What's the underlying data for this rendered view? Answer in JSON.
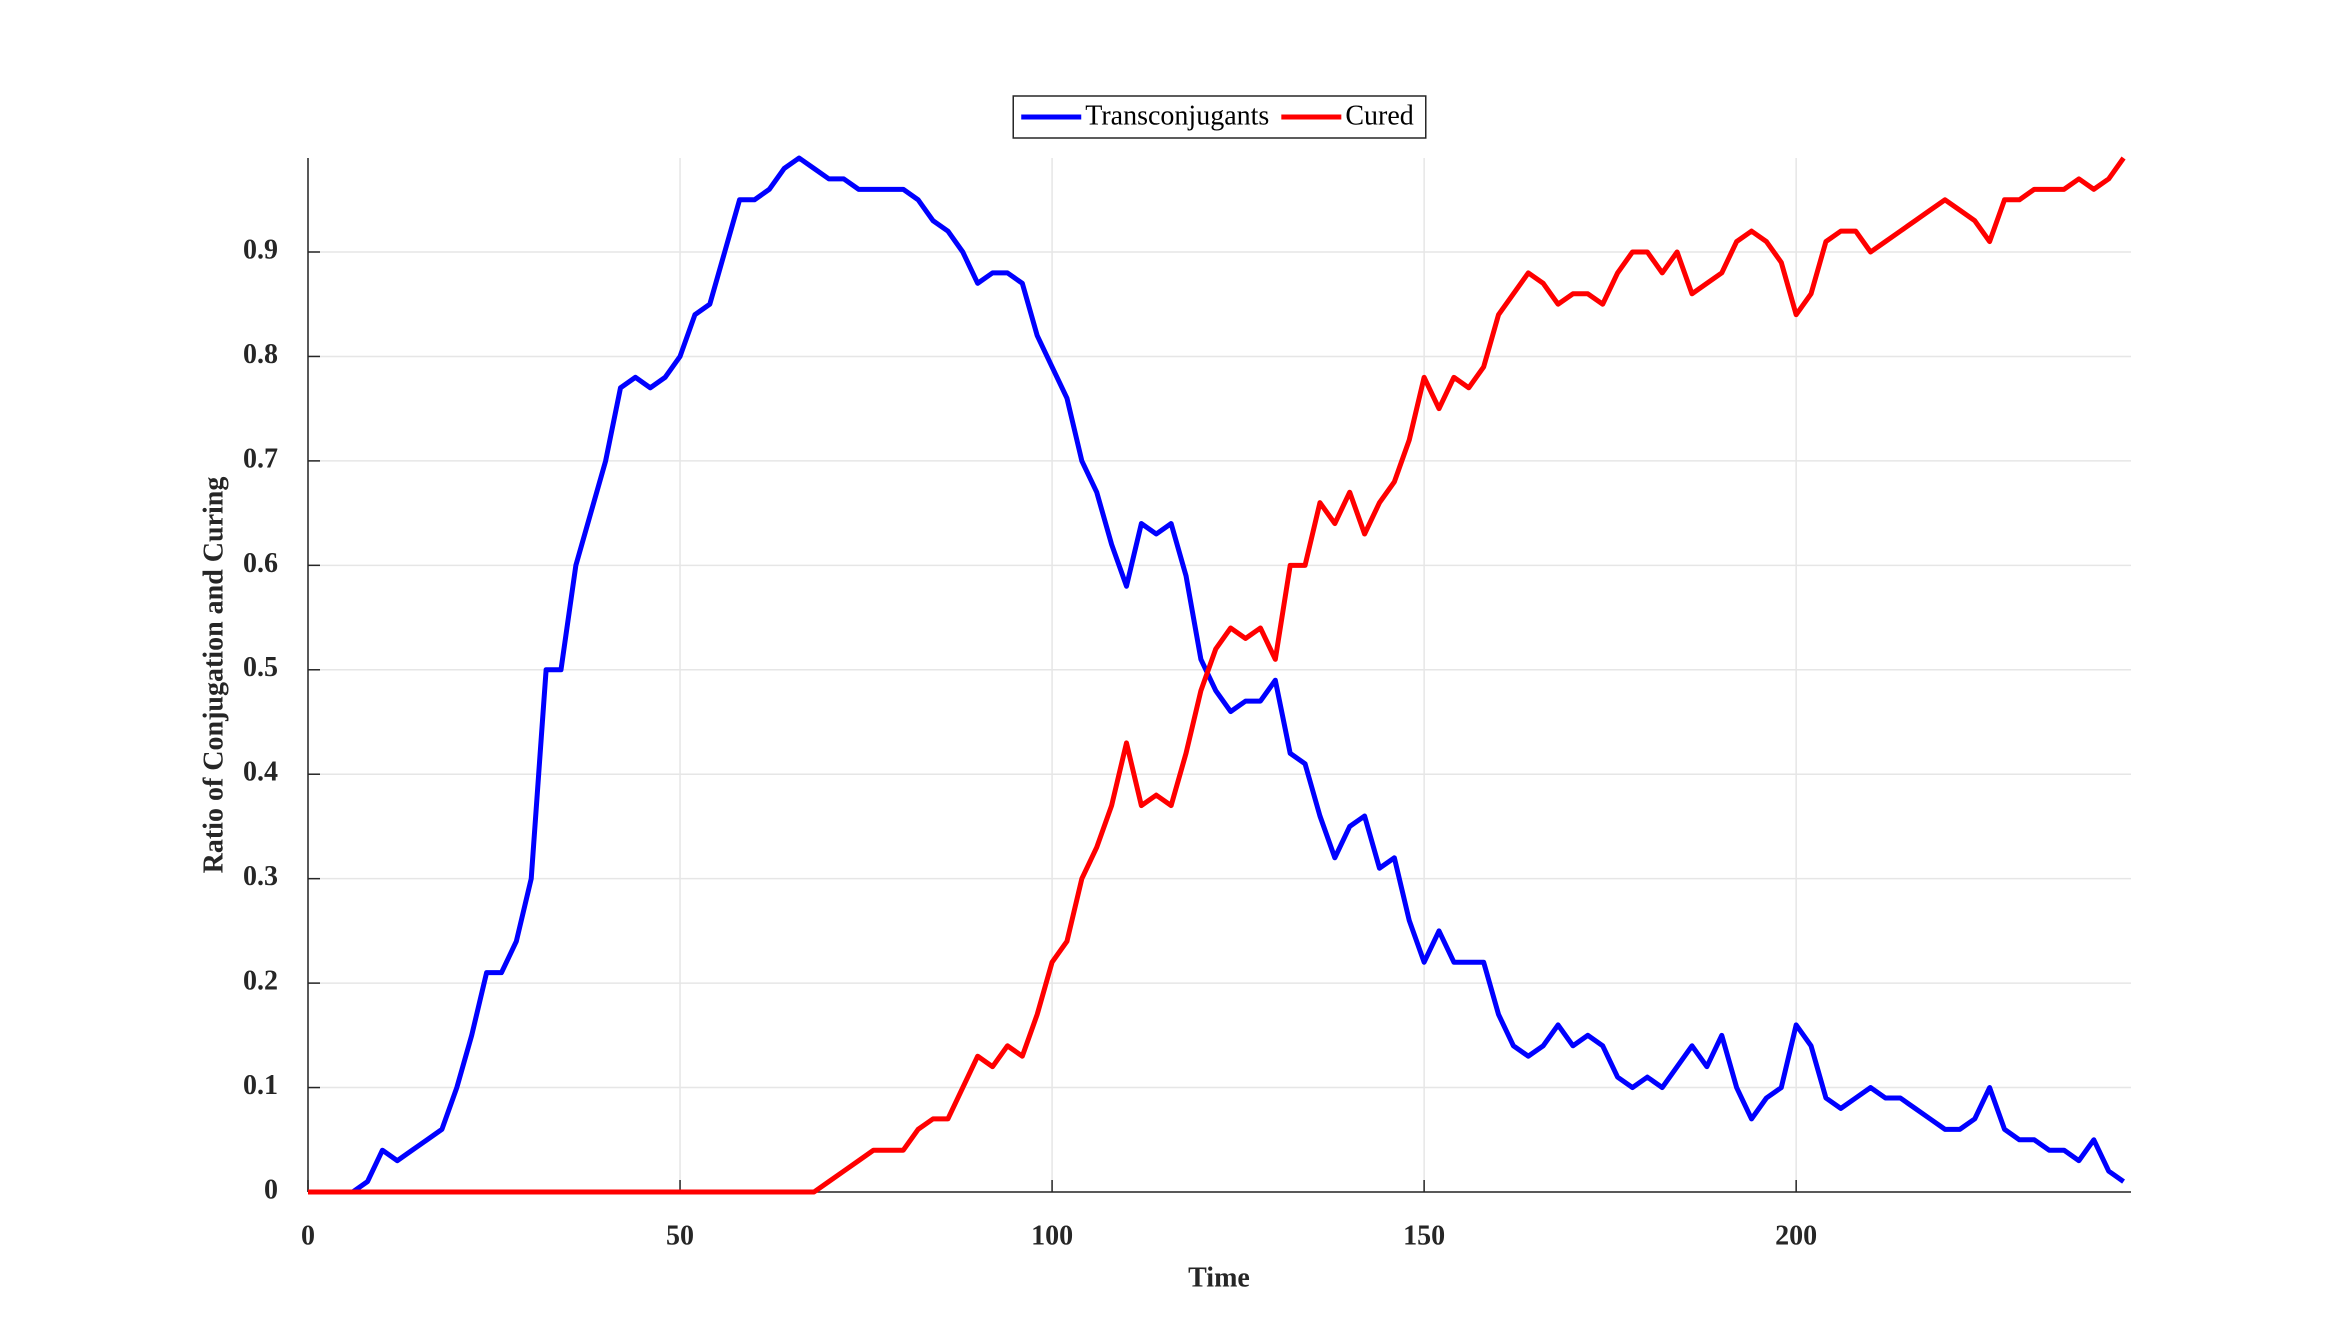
{
  "chart_data": {
    "type": "line",
    "xlabel": "Time",
    "ylabel": "Ratio of Conjugation and Curing",
    "xlim": [
      0,
      245
    ],
    "ylim": [
      0,
      0.99
    ],
    "xticks": [
      0,
      50,
      100,
      150,
      200
    ],
    "yticks": [
      0,
      0.1,
      0.2,
      0.3,
      0.4,
      0.5,
      0.6,
      0.7,
      0.8,
      0.9
    ],
    "grid": true,
    "legend": "top",
    "x": [
      0,
      2,
      4,
      6,
      8,
      10,
      12,
      14,
      16,
      18,
      20,
      22,
      24,
      26,
      28,
      30,
      32,
      34,
      36,
      38,
      40,
      42,
      44,
      46,
      48,
      50,
      52,
      54,
      56,
      58,
      60,
      62,
      64,
      66,
      68,
      70,
      72,
      74,
      76,
      78,
      80,
      82,
      84,
      86,
      88,
      90,
      92,
      94,
      96,
      98,
      100,
      102,
      104,
      106,
      108,
      110,
      112,
      114,
      116,
      118,
      120,
      122,
      124,
      126,
      128,
      130,
      132,
      134,
      136,
      138,
      140,
      142,
      144,
      146,
      148,
      150,
      152,
      154,
      156,
      158,
      160,
      162,
      164,
      166,
      168,
      170,
      172,
      174,
      176,
      178,
      180,
      182,
      184,
      186,
      188,
      190,
      192,
      194,
      196,
      198,
      200,
      202,
      204,
      206,
      208,
      210,
      212,
      214,
      216,
      218,
      220,
      222,
      224,
      226,
      228,
      230,
      232,
      234,
      236,
      238,
      240,
      242,
      244
    ],
    "series": [
      {
        "name": "Transconjugants",
        "color": "#0000ff",
        "values": [
          null,
          null,
          null,
          0,
          0.01,
          0.04,
          0.03,
          0.04,
          0.05,
          0.06,
          0.1,
          0.15,
          0.21,
          0.21,
          0.24,
          0.3,
          0.5,
          0.5,
          0.6,
          0.65,
          0.7,
          0.77,
          0.78,
          0.77,
          0.78,
          0.8,
          0.84,
          0.85,
          0.9,
          0.95,
          0.95,
          0.96,
          0.98,
          0.99,
          0.98,
          0.97,
          0.97,
          0.96,
          0.96,
          0.96,
          0.96,
          0.95,
          0.93,
          0.92,
          0.9,
          0.87,
          0.88,
          0.88,
          0.87,
          0.82,
          0.79,
          0.76,
          0.7,
          0.67,
          0.62,
          0.58,
          0.64,
          0.63,
          0.64,
          0.59,
          0.51,
          0.48,
          0.46,
          0.47,
          0.47,
          0.49,
          0.42,
          0.41,
          0.36,
          0.32,
          0.35,
          0.36,
          0.31,
          0.32,
          0.26,
          0.22,
          0.25,
          0.22,
          0.22,
          0.22,
          0.17,
          0.14,
          0.13,
          0.14,
          0.16,
          0.14,
          0.15,
          0.14,
          0.11,
          0.1,
          0.11,
          0.1,
          0.12,
          0.14,
          0.12,
          0.15,
          0.1,
          0.07,
          0.09,
          0.1,
          0.16,
          0.14,
          0.09,
          0.08,
          0.09,
          0.1,
          0.09,
          0.09,
          0.08,
          0.07,
          0.06,
          0.06,
          0.07,
          0.1,
          0.06,
          0.05,
          0.05,
          0.04,
          0.04,
          0.03,
          0.05,
          0.02,
          0.01
        ]
      },
      {
        "name": "Cured",
        "color": "#ff0000",
        "values": [
          0,
          0,
          0,
          0,
          0,
          0,
          0,
          0,
          0,
          0,
          0,
          0,
          0,
          0,
          0,
          0,
          0,
          0,
          0,
          0,
          0,
          0,
          0,
          0,
          0,
          0,
          0,
          0,
          0,
          0,
          0,
          0,
          0,
          0,
          0,
          0.01,
          0.02,
          0.03,
          0.04,
          0.04,
          0.04,
          0.06,
          0.07,
          0.07,
          0.1,
          0.13,
          0.12,
          0.14,
          0.13,
          0.17,
          0.22,
          0.24,
          0.3,
          0.33,
          0.37,
          0.43,
          0.37,
          0.38,
          0.37,
          0.42,
          0.48,
          0.52,
          0.54,
          0.53,
          0.54,
          0.51,
          0.6,
          0.6,
          0.66,
          0.64,
          0.67,
          0.63,
          0.66,
          0.68,
          0.72,
          0.78,
          0.75,
          0.78,
          0.77,
          0.79,
          0.84,
          0.86,
          0.88,
          0.87,
          0.85,
          0.86,
          0.86,
          0.85,
          0.88,
          0.9,
          0.9,
          0.88,
          0.9,
          0.86,
          0.87,
          0.88,
          0.91,
          0.92,
          0.91,
          0.89,
          0.84,
          0.86,
          0.91,
          0.92,
          0.92,
          0.9,
          0.91,
          0.92,
          0.93,
          0.94,
          0.95,
          0.94,
          0.93,
          0.91,
          0.95,
          0.95,
          0.96,
          0.96,
          0.96,
          0.97,
          0.96,
          0.97,
          0.99
        ]
      }
    ]
  }
}
